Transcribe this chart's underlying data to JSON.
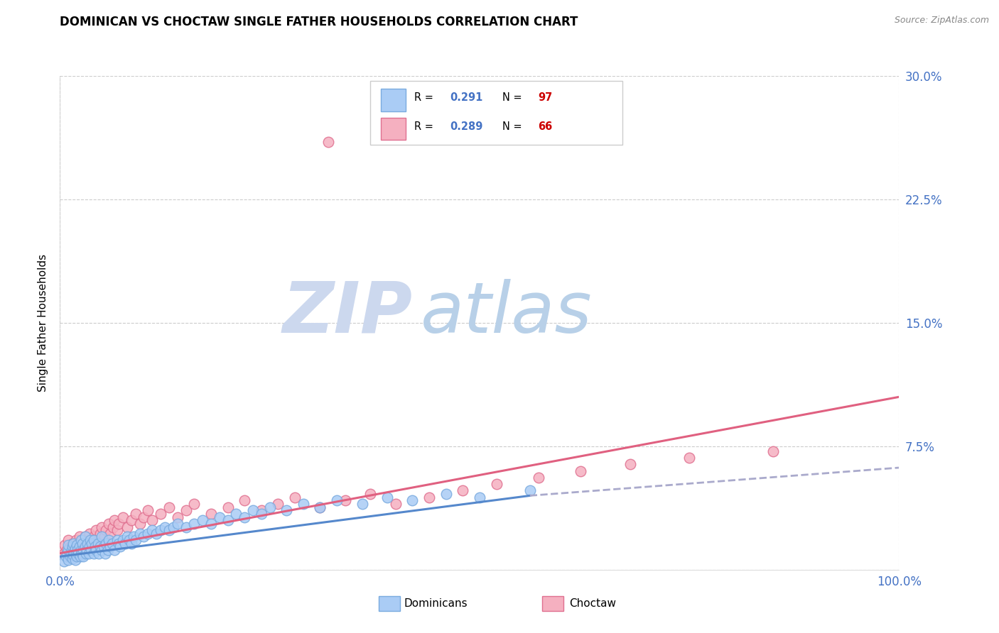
{
  "title": "DOMINICAN VS CHOCTAW SINGLE FATHER HOUSEHOLDS CORRELATION CHART",
  "source": "Source: ZipAtlas.com",
  "ylabel": "Single Father Households",
  "xlim": [
    0,
    1.0
  ],
  "ylim": [
    0,
    0.3
  ],
  "yticks": [
    0,
    0.075,
    0.15,
    0.225,
    0.3
  ],
  "ytick_labels": [
    "",
    "7.5%",
    "15.0%",
    "22.5%",
    "30.0%"
  ],
  "xtick_positions": [
    0,
    1.0
  ],
  "xtick_labels": [
    "0.0%",
    "100.0%"
  ],
  "color_dominicans_fill": "#aaccf5",
  "color_dominicans_edge": "#7aabdf",
  "color_choctaw_fill": "#f5b0c0",
  "color_choctaw_edge": "#e07090",
  "color_trendline_dom": "#5588cc",
  "color_trendline_choc": "#e06080",
  "color_trendline_ext": "#aaaacc",
  "color_axis_ticks": "#4472c4",
  "watermark_zip_color": "#c8d8f0",
  "watermark_atlas_color": "#c0d8e8",
  "background_color": "#ffffff",
  "grid_color": "#cccccc",
  "legend_r1": "0.291",
  "legend_n1": "97",
  "legend_r2": "0.289",
  "legend_n2": "66",
  "dominicans_x": [
    0.005,
    0.007,
    0.008,
    0.01,
    0.01,
    0.01,
    0.012,
    0.013,
    0.014,
    0.015,
    0.015,
    0.016,
    0.016,
    0.017,
    0.018,
    0.018,
    0.019,
    0.02,
    0.02,
    0.021,
    0.022,
    0.023,
    0.024,
    0.025,
    0.025,
    0.026,
    0.027,
    0.028,
    0.028,
    0.03,
    0.03,
    0.031,
    0.032,
    0.033,
    0.034,
    0.035,
    0.036,
    0.037,
    0.038,
    0.04,
    0.04,
    0.042,
    0.043,
    0.045,
    0.046,
    0.048,
    0.05,
    0.05,
    0.052,
    0.054,
    0.055,
    0.057,
    0.058,
    0.06,
    0.062,
    0.065,
    0.068,
    0.07,
    0.072,
    0.075,
    0.078,
    0.08,
    0.083,
    0.085,
    0.088,
    0.09,
    0.095,
    0.1,
    0.105,
    0.11,
    0.115,
    0.12,
    0.125,
    0.13,
    0.135,
    0.14,
    0.15,
    0.16,
    0.17,
    0.18,
    0.19,
    0.2,
    0.21,
    0.22,
    0.23,
    0.24,
    0.25,
    0.27,
    0.29,
    0.31,
    0.33,
    0.36,
    0.39,
    0.42,
    0.46,
    0.5,
    0.56
  ],
  "dominicans_y": [
    0.005,
    0.008,
    0.01,
    0.012,
    0.006,
    0.015,
    0.008,
    0.01,
    0.012,
    0.007,
    0.014,
    0.009,
    0.016,
    0.011,
    0.013,
    0.006,
    0.01,
    0.008,
    0.015,
    0.012,
    0.01,
    0.014,
    0.008,
    0.012,
    0.018,
    0.01,
    0.016,
    0.012,
    0.008,
    0.014,
    0.02,
    0.01,
    0.012,
    0.016,
    0.01,
    0.014,
    0.018,
    0.012,
    0.016,
    0.01,
    0.018,
    0.014,
    0.012,
    0.016,
    0.01,
    0.014,
    0.012,
    0.02,
    0.014,
    0.01,
    0.016,
    0.012,
    0.018,
    0.014,
    0.016,
    0.012,
    0.018,
    0.016,
    0.014,
    0.018,
    0.016,
    0.02,
    0.018,
    0.016,
    0.02,
    0.018,
    0.022,
    0.02,
    0.022,
    0.024,
    0.022,
    0.024,
    0.026,
    0.024,
    0.026,
    0.028,
    0.026,
    0.028,
    0.03,
    0.028,
    0.032,
    0.03,
    0.034,
    0.032,
    0.036,
    0.034,
    0.038,
    0.036,
    0.04,
    0.038,
    0.042,
    0.04,
    0.044,
    0.042,
    0.046,
    0.044,
    0.048
  ],
  "choctaw_x": [
    0.005,
    0.006,
    0.008,
    0.01,
    0.01,
    0.012,
    0.013,
    0.015,
    0.016,
    0.018,
    0.019,
    0.02,
    0.022,
    0.023,
    0.025,
    0.026,
    0.028,
    0.03,
    0.032,
    0.034,
    0.035,
    0.038,
    0.04,
    0.043,
    0.045,
    0.048,
    0.05,
    0.053,
    0.055,
    0.058,
    0.06,
    0.063,
    0.065,
    0.068,
    0.07,
    0.075,
    0.08,
    0.085,
    0.09,
    0.095,
    0.1,
    0.105,
    0.11,
    0.12,
    0.13,
    0.14,
    0.15,
    0.16,
    0.18,
    0.2,
    0.22,
    0.24,
    0.26,
    0.28,
    0.31,
    0.34,
    0.37,
    0.4,
    0.44,
    0.48,
    0.52,
    0.57,
    0.62,
    0.68,
    0.75,
    0.85
  ],
  "choctaw_y": [
    0.01,
    0.015,
    0.012,
    0.018,
    0.008,
    0.014,
    0.01,
    0.016,
    0.012,
    0.014,
    0.018,
    0.012,
    0.016,
    0.02,
    0.014,
    0.018,
    0.016,
    0.02,
    0.014,
    0.018,
    0.022,
    0.016,
    0.02,
    0.024,
    0.018,
    0.022,
    0.026,
    0.02,
    0.024,
    0.028,
    0.022,
    0.026,
    0.03,
    0.024,
    0.028,
    0.032,
    0.026,
    0.03,
    0.034,
    0.028,
    0.032,
    0.036,
    0.03,
    0.034,
    0.038,
    0.032,
    0.036,
    0.04,
    0.034,
    0.038,
    0.042,
    0.036,
    0.04,
    0.044,
    0.038,
    0.042,
    0.046,
    0.04,
    0.044,
    0.048,
    0.052,
    0.056,
    0.06,
    0.064,
    0.068,
    0.072
  ],
  "choctaw_outlier_x": [
    0.32
  ],
  "choctaw_outlier_y": [
    0.26
  ],
  "trendline_dom_x0": 0.0,
  "trendline_dom_y0": 0.008,
  "trendline_dom_x1": 0.56,
  "trendline_dom_y1": 0.045,
  "trendline_dom_ext_x1": 1.0,
  "trendline_dom_ext_y1": 0.062,
  "trendline_choc_x0": 0.0,
  "trendline_choc_y0": 0.01,
  "trendline_choc_x1": 1.0,
  "trendline_choc_y1": 0.105
}
